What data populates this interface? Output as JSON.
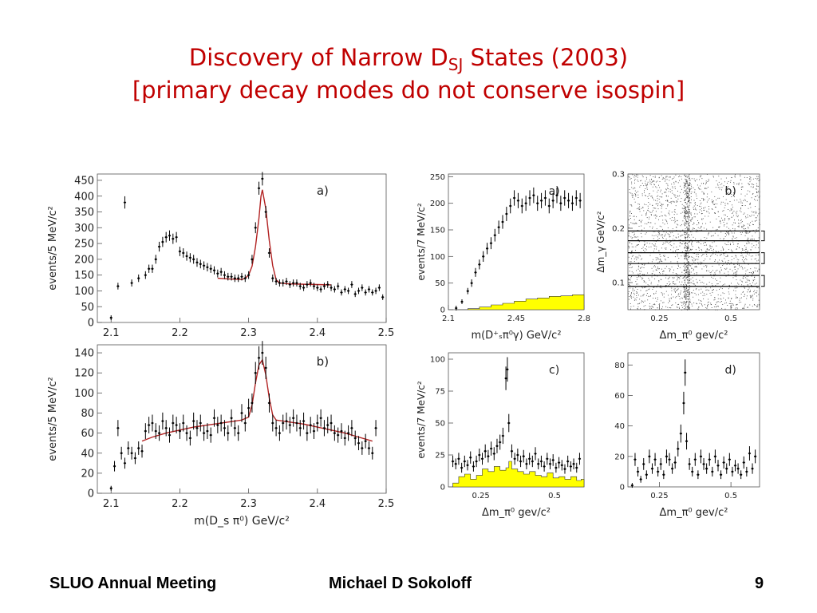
{
  "slide": {
    "title_prefix": "Discovery of Narrow D",
    "title_sub": "SJ",
    "title_suffix": " States (2003)",
    "subtitle": "[primary decay modes do not conserve isospin]"
  },
  "footer": {
    "left": "SLUO Annual Meeting",
    "center": "Michael D Sokoloff",
    "page": "9"
  },
  "colors": {
    "title": "#c00000",
    "fit": "#b22222",
    "fill": "#ffff00"
  },
  "chart_data": [
    {
      "id": "left-a",
      "type": "scatter",
      "panel_label": "a)",
      "ylabel": "events/5 MeV/c²",
      "xlabel": "",
      "xlim": [
        2.08,
        2.5
      ],
      "ylim": [
        0,
        470
      ],
      "xticks": [
        "2.1",
        "2.2",
        "2.3",
        "2.4",
        "2.5"
      ],
      "yticks": [
        "0",
        "50",
        "100",
        "150",
        "200",
        "250",
        "300",
        "350",
        "400",
        "450"
      ],
      "series": [
        {
          "kind": "points",
          "x": [
            2.1,
            2.11,
            2.12,
            2.13,
            2.14,
            2.15,
            2.155,
            2.16,
            2.165,
            2.17,
            2.175,
            2.18,
            2.185,
            2.19,
            2.195,
            2.2,
            2.205,
            2.21,
            2.215,
            2.22,
            2.225,
            2.23,
            2.235,
            2.24,
            2.245,
            2.25,
            2.255,
            2.26,
            2.265,
            2.27,
            2.275,
            2.28,
            2.285,
            2.29,
            2.295,
            2.3,
            2.305,
            2.31,
            2.315,
            2.32,
            2.325,
            2.33,
            2.335,
            2.34,
            2.345,
            2.35,
            2.355,
            2.36,
            2.365,
            2.37,
            2.375,
            2.38,
            2.385,
            2.39,
            2.395,
            2.4,
            2.405,
            2.41,
            2.415,
            2.42,
            2.425,
            2.43,
            2.435,
            2.44,
            2.445,
            2.45,
            2.455,
            2.46,
            2.465,
            2.47,
            2.475,
            2.48,
            2.485,
            2.49,
            2.495
          ],
          "y": [
            15,
            115,
            380,
            125,
            140,
            150,
            170,
            170,
            200,
            240,
            255,
            270,
            275,
            265,
            270,
            225,
            220,
            210,
            205,
            200,
            190,
            185,
            180,
            175,
            170,
            165,
            155,
            160,
            150,
            145,
            145,
            140,
            140,
            145,
            140,
            150,
            200,
            300,
            425,
            455,
            350,
            220,
            140,
            130,
            125,
            125,
            130,
            120,
            125,
            125,
            115,
            110,
            120,
            125,
            115,
            110,
            105,
            115,
            120,
            110,
            105,
            115,
            95,
            105,
            100,
            120,
            90,
            100,
            110,
            95,
            105,
            95,
            100,
            110,
            80
          ]
        },
        {
          "kind": "fit",
          "x": [
            2.255,
            2.27,
            2.28,
            2.29,
            2.295,
            2.3,
            2.305,
            2.31,
            2.315,
            2.318,
            2.32,
            2.325,
            2.33,
            2.335,
            2.34,
            2.345,
            2.36,
            2.38,
            2.4,
            2.42
          ],
          "y": [
            140,
            138,
            137,
            136,
            140,
            150,
            178,
            240,
            330,
            400,
            420,
            360,
            260,
            180,
            135,
            125,
            122,
            121,
            120,
            119
          ]
        }
      ]
    },
    {
      "id": "left-b",
      "type": "scatter",
      "panel_label": "b)",
      "ylabel": "events/5 MeV/c²",
      "xlabel": "m(D_s π⁰) GeV/c²",
      "xlim": [
        2.08,
        2.5
      ],
      "ylim": [
        0,
        148
      ],
      "xticks": [
        "2.1",
        "2.2",
        "2.3",
        "2.4",
        "2.5"
      ],
      "yticks": [
        "0",
        "20",
        "40",
        "60",
        "80",
        "100",
        "120",
        "140"
      ],
      "series": [
        {
          "kind": "points",
          "x": [
            2.1,
            2.105,
            2.11,
            2.115,
            2.12,
            2.125,
            2.13,
            2.135,
            2.14,
            2.145,
            2.15,
            2.155,
            2.16,
            2.165,
            2.17,
            2.175,
            2.18,
            2.185,
            2.19,
            2.195,
            2.2,
            2.205,
            2.21,
            2.215,
            2.22,
            2.225,
            2.23,
            2.235,
            2.24,
            2.245,
            2.25,
            2.255,
            2.26,
            2.265,
            2.27,
            2.275,
            2.28,
            2.285,
            2.29,
            2.295,
            2.3,
            2.305,
            2.31,
            2.315,
            2.32,
            2.325,
            2.33,
            2.335,
            2.34,
            2.345,
            2.35,
            2.355,
            2.36,
            2.365,
            2.37,
            2.375,
            2.38,
            2.385,
            2.39,
            2.395,
            2.4,
            2.405,
            2.41,
            2.415,
            2.42,
            2.425,
            2.43,
            2.435,
            2.44,
            2.445,
            2.45,
            2.455,
            2.46,
            2.465,
            2.47,
            2.475,
            2.48,
            2.485
          ],
          "y": [
            5,
            27,
            65,
            40,
            30,
            45,
            40,
            35,
            45,
            42,
            62,
            68,
            70,
            62,
            60,
            72,
            65,
            58,
            70,
            68,
            62,
            70,
            60,
            55,
            72,
            65,
            70,
            60,
            62,
            58,
            75,
            68,
            70,
            65,
            60,
            75,
            65,
            60,
            80,
            70,
            85,
            90,
            120,
            135,
            140,
            125,
            90,
            70,
            65,
            60,
            70,
            72,
            68,
            75,
            70,
            65,
            72,
            60,
            68,
            62,
            70,
            75,
            65,
            68,
            70,
            60,
            58,
            62,
            55,
            60,
            65,
            55,
            50,
            45,
            52,
            45,
            40,
            65
          ]
        },
        {
          "kind": "fit",
          "x": [
            2.145,
            2.16,
            2.18,
            2.2,
            2.22,
            2.24,
            2.26,
            2.28,
            2.29,
            2.3,
            2.305,
            2.31,
            2.315,
            2.32,
            2.325,
            2.33,
            2.335,
            2.34,
            2.36,
            2.38,
            2.4,
            2.42,
            2.44,
            2.46,
            2.48
          ],
          "y": [
            52,
            56,
            60,
            63,
            66,
            68,
            70,
            72,
            73,
            76,
            88,
            110,
            128,
            133,
            118,
            95,
            78,
            73,
            71,
            69,
            66,
            63,
            60,
            56,
            52
          ]
        }
      ]
    },
    {
      "id": "right-a",
      "type": "scatter",
      "panel_label": "a)",
      "ylabel": "events/7 MeV/c²",
      "xlabel": "m(D⁺ₛπ⁰γ) GeV/c²",
      "xlim": [
        2.1,
        2.8
      ],
      "ylim": [
        0,
        255
      ],
      "xticks": [
        "2.1",
        "2.45",
        "2.8"
      ],
      "yticks": [
        "0",
        "50",
        "100",
        "150",
        "200",
        "250"
      ],
      "series": [
        {
          "kind": "points",
          "x": [
            2.14,
            2.17,
            2.2,
            2.22,
            2.24,
            2.26,
            2.28,
            2.3,
            2.32,
            2.34,
            2.36,
            2.38,
            2.4,
            2.42,
            2.44,
            2.46,
            2.48,
            2.5,
            2.52,
            2.54,
            2.56,
            2.58,
            2.6,
            2.62,
            2.64,
            2.66,
            2.68,
            2.7,
            2.72,
            2.74,
            2.76,
            2.78
          ],
          "y": [
            3,
            15,
            35,
            50,
            70,
            85,
            100,
            115,
            125,
            140,
            155,
            165,
            180,
            195,
            210,
            205,
            195,
            200,
            210,
            215,
            200,
            205,
            210,
            195,
            205,
            215,
            200,
            210,
            205,
            200,
            210,
            205
          ]
        },
        {
          "kind": "area",
          "x": [
            2.14,
            2.2,
            2.26,
            2.32,
            2.38,
            2.44,
            2.5,
            2.56,
            2.62,
            2.68,
            2.74,
            2.8
          ],
          "y": [
            0,
            2,
            5,
            9,
            12,
            16,
            20,
            22,
            25,
            26,
            28,
            28
          ]
        }
      ]
    },
    {
      "id": "right-b",
      "type": "scatter",
      "panel_label": "b)",
      "ylabel": "Δm_γ GeV/c²",
      "xlabel": "Δm_π⁰ gev/c²",
      "xlim": [
        0.14,
        0.6
      ],
      "ylim": [
        0.05,
        0.3
      ],
      "xticks": [
        "0.25",
        "0.5"
      ],
      "yticks": [
        "0.1",
        "0.2",
        "0.3"
      ],
      "bands": [
        [
          0.177,
          0.195
        ],
        [
          0.135,
          0.155
        ],
        [
          0.093,
          0.113
        ]
      ]
    },
    {
      "id": "right-c",
      "type": "scatter",
      "panel_label": "c)",
      "ylabel": "events/7 MeV/c²",
      "xlabel": "Δm_π⁰ gev/c²",
      "xlim": [
        0.14,
        0.6
      ],
      "ylim": [
        0,
        105
      ],
      "xticks": [
        "0.25",
        "0.5"
      ],
      "yticks": [
        "0",
        "25",
        "50",
        "75",
        "100"
      ],
      "series": [
        {
          "kind": "points",
          "x": [
            0.155,
            0.165,
            0.175,
            0.185,
            0.195,
            0.205,
            0.215,
            0.225,
            0.235,
            0.245,
            0.255,
            0.265,
            0.275,
            0.285,
            0.295,
            0.305,
            0.315,
            0.325,
            0.335,
            0.34,
            0.345,
            0.355,
            0.365,
            0.375,
            0.385,
            0.395,
            0.405,
            0.415,
            0.425,
            0.435,
            0.445,
            0.455,
            0.465,
            0.475,
            0.485,
            0.495,
            0.505,
            0.515,
            0.525,
            0.535,
            0.545,
            0.555,
            0.565,
            0.575,
            0.585
          ],
          "y": [
            20,
            18,
            22,
            15,
            20,
            17,
            23,
            16,
            20,
            25,
            22,
            28,
            24,
            30,
            26,
            32,
            35,
            40,
            85,
            92,
            50,
            28,
            22,
            25,
            20,
            24,
            18,
            22,
            20,
            26,
            18,
            20,
            16,
            22,
            18,
            21,
            15,
            19,
            17,
            14,
            20,
            16,
            18,
            15,
            22
          ]
        },
        {
          "kind": "area",
          "x": [
            0.155,
            0.175,
            0.195,
            0.215,
            0.235,
            0.255,
            0.275,
            0.295,
            0.315,
            0.335,
            0.345,
            0.355,
            0.375,
            0.395,
            0.415,
            0.435,
            0.455,
            0.475,
            0.495,
            0.515,
            0.535,
            0.555,
            0.575,
            0.59
          ],
          "y": [
            3,
            8,
            10,
            6,
            9,
            14,
            12,
            16,
            13,
            15,
            20,
            14,
            12,
            10,
            12,
            9,
            8,
            11,
            7,
            8,
            6,
            8,
            5,
            6
          ]
        }
      ]
    },
    {
      "id": "right-d",
      "type": "scatter",
      "panel_label": "d)",
      "ylabel": "",
      "xlabel": "Δm_π⁰ gev/c²",
      "xlim": [
        0.14,
        0.6
      ],
      "ylim": [
        0,
        88
      ],
      "xticks": [
        "0.25",
        "0.5"
      ],
      "yticks": [
        "0",
        "20",
        "40",
        "60",
        "80"
      ],
      "series": [
        {
          "kind": "points",
          "x": [
            0.155,
            0.165,
            0.175,
            0.185,
            0.195,
            0.205,
            0.215,
            0.225,
            0.235,
            0.245,
            0.255,
            0.265,
            0.275,
            0.285,
            0.295,
            0.305,
            0.315,
            0.325,
            0.335,
            0.34,
            0.345,
            0.355,
            0.365,
            0.375,
            0.385,
            0.395,
            0.405,
            0.415,
            0.425,
            0.435,
            0.445,
            0.455,
            0.465,
            0.475,
            0.485,
            0.495,
            0.505,
            0.515,
            0.525,
            0.535,
            0.545,
            0.555,
            0.565,
            0.575,
            0.585
          ],
          "y": [
            1,
            18,
            10,
            5,
            15,
            8,
            20,
            12,
            18,
            10,
            15,
            8,
            20,
            18,
            12,
            16,
            25,
            35,
            55,
            75,
            30,
            15,
            10,
            18,
            8,
            20,
            15,
            12,
            18,
            10,
            20,
            14,
            8,
            16,
            12,
            18,
            10,
            14,
            12,
            8,
            16,
            10,
            22,
            12,
            20
          ]
        }
      ]
    }
  ]
}
